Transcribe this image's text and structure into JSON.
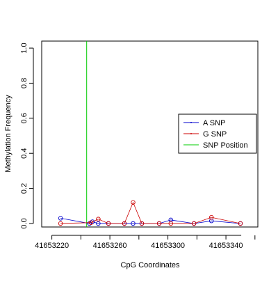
{
  "chart_data": {
    "type": "line",
    "title": "",
    "xlabel": "CpG Coordinates",
    "ylabel": "Methylation Frequency",
    "xlim": [
      41653213,
      41653362
    ],
    "ylim": [
      -0.02,
      1.04
    ],
    "x_ticks": [
      41653220,
      41653260,
      41653300,
      41653340
    ],
    "x_tick_labels": [
      "41653220",
      "41653260",
      "41653300",
      "41653340"
    ],
    "y_ticks": [
      0.0,
      0.2,
      0.4,
      0.6,
      0.8,
      1.0
    ],
    "y_tick_labels": [
      "0.0",
      "0.2",
      "0.4",
      "0.6",
      "0.8",
      "1.0"
    ],
    "grid": false,
    "legend_placement": "right",
    "series": [
      {
        "name": "A SNP",
        "color": "#0000cc",
        "x": [
          41653226,
          41653246,
          41653248,
          41653252,
          41653259,
          41653270,
          41653276,
          41653282,
          41653294,
          41653302,
          41653318,
          41653330,
          41653350
        ],
        "y": [
          0.03,
          0.0,
          0.01,
          0.0,
          0.0,
          0.0,
          0.0,
          0.0,
          0.0,
          0.02,
          0.0,
          0.015,
          0.0
        ]
      },
      {
        "name": "G SNP",
        "color": "#cc0000",
        "x": [
          41653226,
          41653247,
          41653252,
          41653259,
          41653270,
          41653276,
          41653282,
          41653294,
          41653302,
          41653318,
          41653330,
          41653350
        ],
        "y": [
          0.0,
          0.005,
          0.025,
          0.0,
          0.0,
          0.12,
          0.0,
          0.0,
          0.0,
          0.0,
          0.035,
          0.0
        ]
      },
      {
        "name": "SNP Position",
        "color": "#00cc00",
        "type": "vline",
        "x": 41653244
      }
    ]
  }
}
